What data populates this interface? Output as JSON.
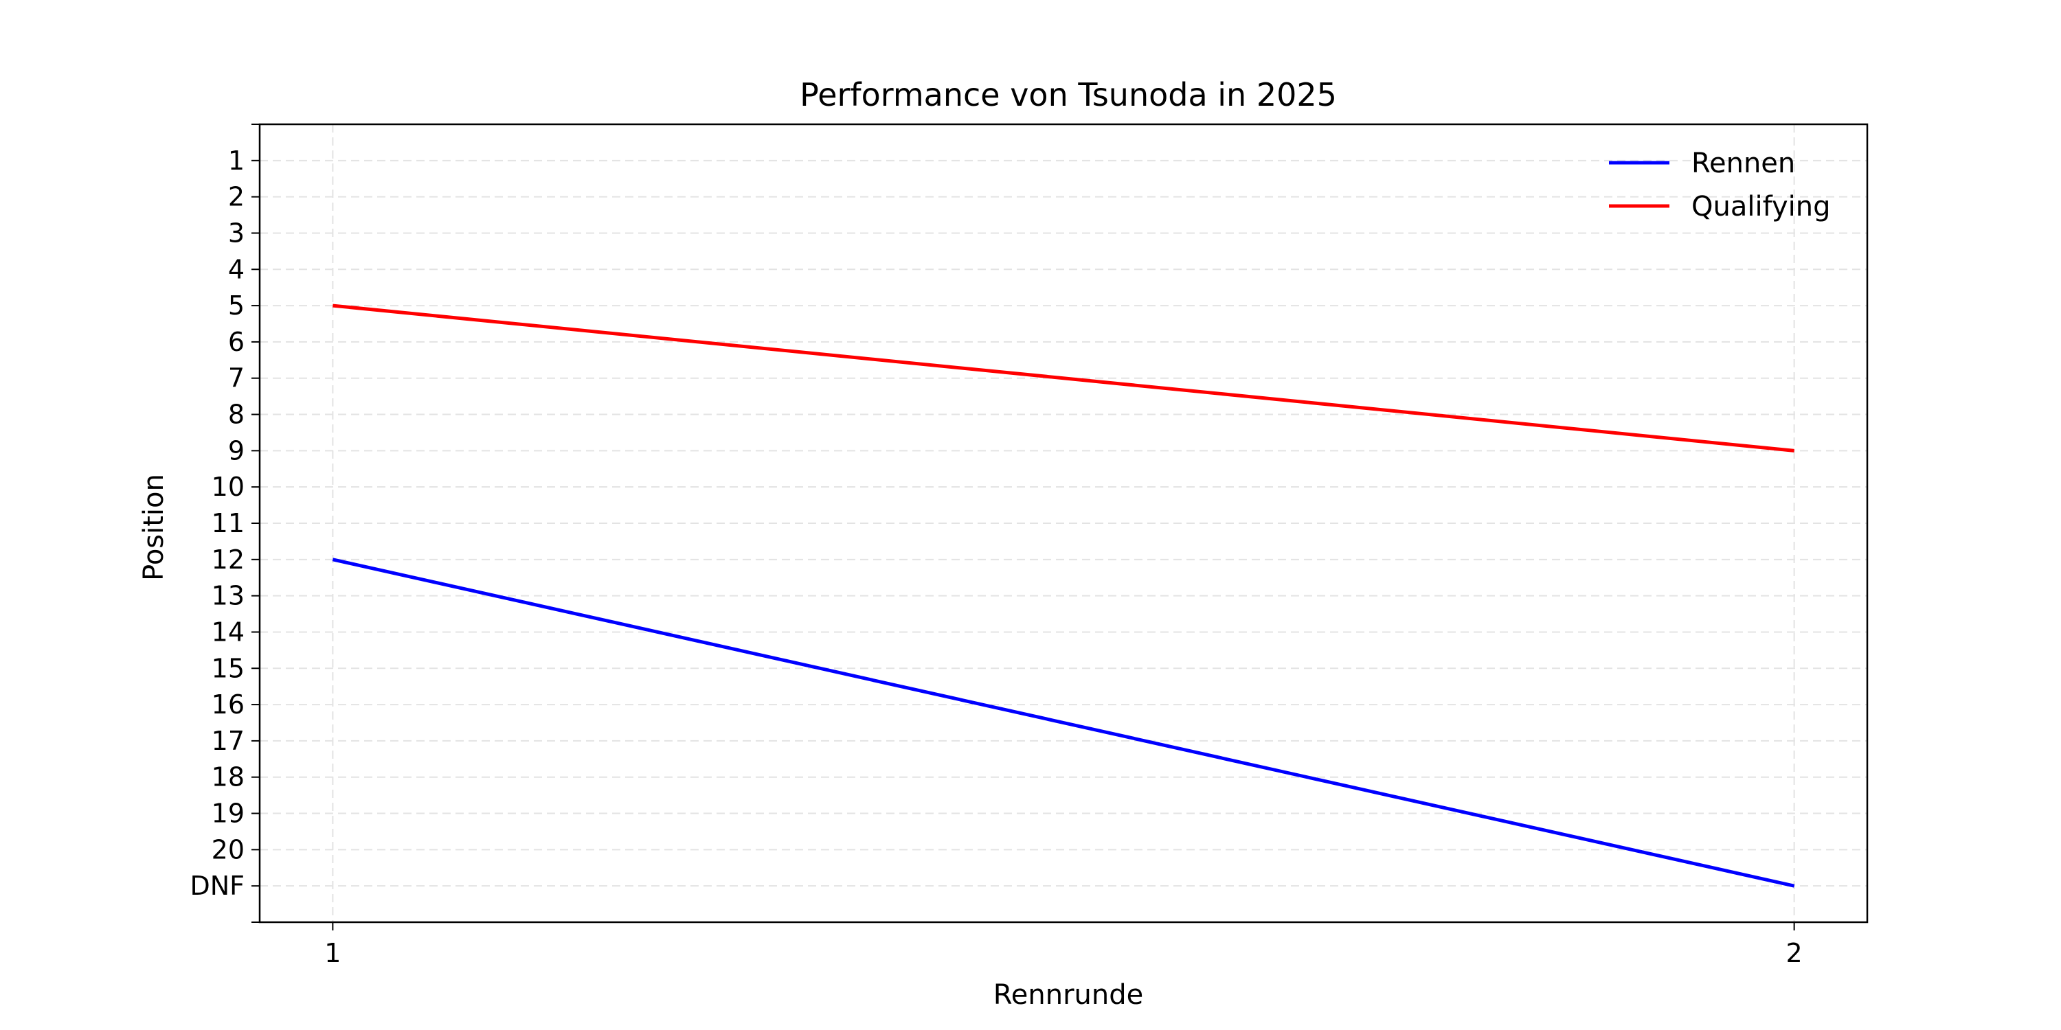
{
  "chart_data": {
    "type": "line",
    "title": "Performance von Tsunoda in 2025",
    "xlabel": "Rennrunde",
    "ylabel": "Position",
    "x": [
      1,
      2
    ],
    "x_ticks": [
      "1",
      "2"
    ],
    "y_ticks": [
      "1",
      "2",
      "3",
      "4",
      "5",
      "6",
      "7",
      "8",
      "9",
      "10",
      "11",
      "12",
      "13",
      "14",
      "15",
      "16",
      "17",
      "18",
      "19",
      "20",
      "DNF"
    ],
    "y_inverted": true,
    "grid": true,
    "legend_position": "top-right",
    "series": [
      {
        "name": "Rennen",
        "values": [
          "12",
          "DNF"
        ],
        "color": "#0000ff"
      },
      {
        "name": "Qualifying",
        "values": [
          "5",
          "9"
        ],
        "color": "#ff0000"
      }
    ]
  }
}
